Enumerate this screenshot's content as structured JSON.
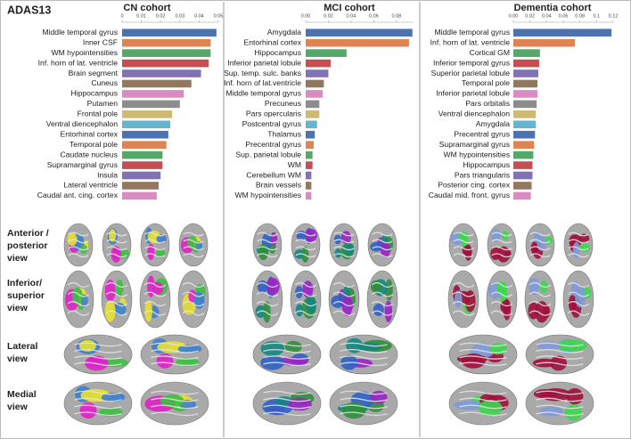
{
  "figure_title": "ADAS13",
  "view_labels": [
    [
      "Anterior /",
      "posterior",
      "view"
    ],
    [
      "Inferior/",
      "superior",
      "view"
    ],
    [
      "Lateral",
      "view"
    ],
    [
      "Medial",
      "view"
    ]
  ],
  "palette": [
    "#4c72b0",
    "#dd8452",
    "#55a868",
    "#c44e52",
    "#8172b3",
    "#937860",
    "#da8bc3",
    "#8c8c8c",
    "#ccb974",
    "#64b5cd"
  ],
  "chart_data": [
    {
      "type": "bar",
      "orientation": "horizontal",
      "title": "CN cohort",
      "categories": [
        "Middle temporal gyrus",
        "Inner CSF",
        "WM hypointensities",
        "Inf. horn of lat. ventricle",
        "Brain segment",
        "Cuneus",
        "Hippocampus",
        "Putamen",
        "Frontal pole",
        "Ventral diencephalon",
        "Entorhinal cortex",
        "Temporal pole",
        "Caudate nucleus",
        "Supramarginal gyrus",
        "Insula",
        "Lateral ventricle",
        "Caudal ant. cing. cortex"
      ],
      "values": [
        0.049,
        0.046,
        0.046,
        0.045,
        0.041,
        0.036,
        0.032,
        0.03,
        0.026,
        0.025,
        0.024,
        0.023,
        0.021,
        0.021,
        0.02,
        0.019,
        0.018
      ],
      "xlim": [
        0,
        0.05
      ],
      "xticks": [
        0,
        0.01,
        0.02,
        0.03,
        0.04,
        0.05
      ]
    },
    {
      "type": "bar",
      "orientation": "horizontal",
      "title": "MCI cohort",
      "categories": [
        "Amygdala",
        "Entorhinal cortex",
        "Hippocampus",
        "Inferior parietal lobule",
        "Sup. temp. sulc. banks",
        "Inf. horn of lat.ventricle",
        "Middle temporal gyrus",
        "Precuneus",
        "Pars opercularis",
        "Postcentral gyrus",
        "Thalamus",
        "Precentral gyrus",
        "Sup. parietal lobule",
        "WM",
        "Cerebellum WM",
        "Brain vessels",
        "WM hypointensities"
      ],
      "values": [
        0.094,
        0.091,
        0.036,
        0.022,
        0.02,
        0.016,
        0.015,
        0.012,
        0.012,
        0.01,
        0.008,
        0.007,
        0.006,
        0.006,
        0.005,
        0.005,
        0.005
      ],
      "xlim": [
        0,
        0.095
      ],
      "xticks": [
        {
          "value": 0,
          "label": "0.00"
        },
        0.02,
        0.04,
        0.06,
        0.08
      ]
    },
    {
      "type": "bar",
      "orientation": "horizontal",
      "title": "Dementia cohort",
      "categories": [
        "Middle temporal gyrus",
        "Inf. horn of lat. ventricle",
        "Cortical GM",
        "Inferior temporal gyrus",
        "Superior parietal lobule",
        "Temporal pole",
        "Inferior parietal lobule",
        "Pars orbitalis",
        "Ventral diencephalon",
        "Amygdala",
        "Precentral gyrus",
        "Supramarginal gyrus",
        "WM hypointensities",
        "Hippocampus",
        "Pars triangularis",
        "Posterior cing. cortex",
        "Caudal mid. front. gyrus"
      ],
      "values": [
        0.118,
        0.074,
        0.032,
        0.031,
        0.03,
        0.029,
        0.029,
        0.028,
        0.027,
        0.027,
        0.026,
        0.025,
        0.024,
        0.023,
        0.023,
        0.022,
        0.021
      ],
      "xlim": [
        0,
        0.12
      ],
      "xticks": [
        {
          "value": 0,
          "label": "0.00"
        },
        0.02,
        0.04,
        0.06,
        0.08,
        0.1,
        0.12
      ]
    }
  ]
}
